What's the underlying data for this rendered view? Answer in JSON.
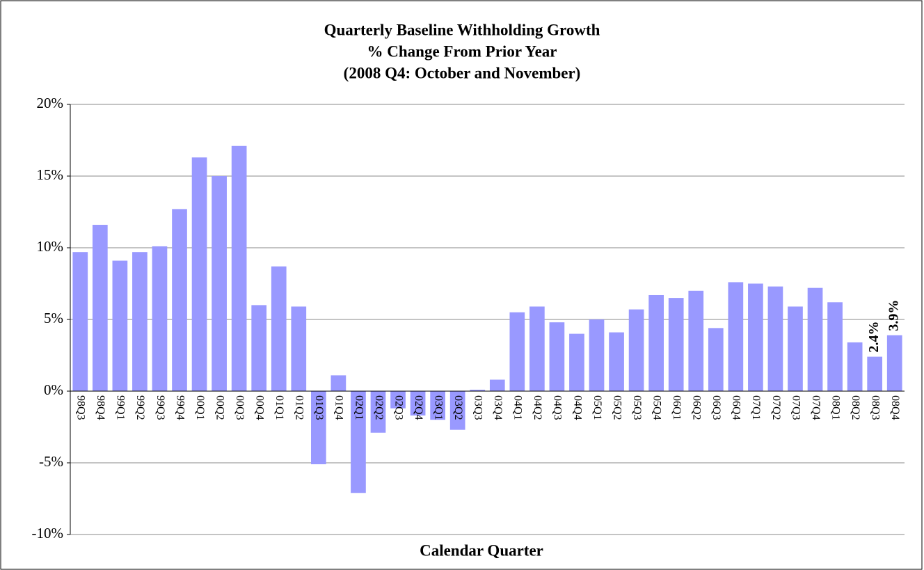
{
  "chart_data": {
    "type": "bar",
    "title": "Quarterly Baseline Withholding Growth",
    "subtitle": [
      "% Change From Prior Year",
      "(2008 Q4: October and November)"
    ],
    "x_label": "Calendar Quarter",
    "categories": [
      "98Q3",
      "98Q4",
      "99Q1",
      "99Q2",
      "99Q3",
      "99Q4",
      "00Q1",
      "00Q2",
      "00Q3",
      "00Q4",
      "01Q1",
      "01Q2",
      "01Q3",
      "01Q4",
      "02Q1",
      "02Q2",
      "02Q3",
      "02Q4",
      "03Q1",
      "03Q2",
      "03Q3",
      "03Q4",
      "04Q1",
      "04Q2",
      "04Q3",
      "04Q4",
      "05Q1",
      "05Q2",
      "05Q3",
      "05Q4",
      "06Q1",
      "06Q2",
      "06Q3",
      "06Q4",
      "07Q1",
      "07Q2",
      "07Q3",
      "07Q4",
      "08Q1",
      "08Q2",
      "08Q3",
      "08Q4"
    ],
    "values": [
      9.7,
      11.6,
      9.1,
      9.7,
      10.1,
      12.7,
      16.3,
      15.0,
      17.1,
      6.0,
      8.7,
      5.9,
      -5.1,
      1.1,
      -7.1,
      -2.9,
      -1.2,
      -1.7,
      -2.0,
      -2.7,
      0.1,
      0.8,
      5.5,
      5.9,
      4.8,
      4.0,
      5.0,
      4.1,
      5.7,
      6.7,
      6.5,
      7.0,
      4.4,
      7.6,
      7.5,
      7.3,
      5.9,
      7.2,
      6.2,
      3.4,
      2.4,
      3.9
    ],
    "value_labels": [
      null,
      null,
      null,
      null,
      null,
      null,
      null,
      null,
      null,
      null,
      null,
      null,
      null,
      null,
      null,
      null,
      null,
      null,
      null,
      null,
      null,
      null,
      null,
      null,
      null,
      null,
      null,
      null,
      null,
      null,
      null,
      null,
      null,
      null,
      null,
      null,
      null,
      null,
      null,
      null,
      "2.4%",
      "3.9%"
    ],
    "color": "#9999ff",
    "ylim": [
      -10,
      20
    ],
    "yticks": [
      {
        "value": -10,
        "label": "-10%"
      },
      {
        "value": -5,
        "label": "-5%"
      },
      {
        "value": 0,
        "label": "0%"
      },
      {
        "value": 5,
        "label": "5%"
      },
      {
        "value": 10,
        "label": "10%"
      },
      {
        "value": 15,
        "label": "15%"
      },
      {
        "value": 20,
        "label": "20%"
      }
    ],
    "grid": true
  }
}
